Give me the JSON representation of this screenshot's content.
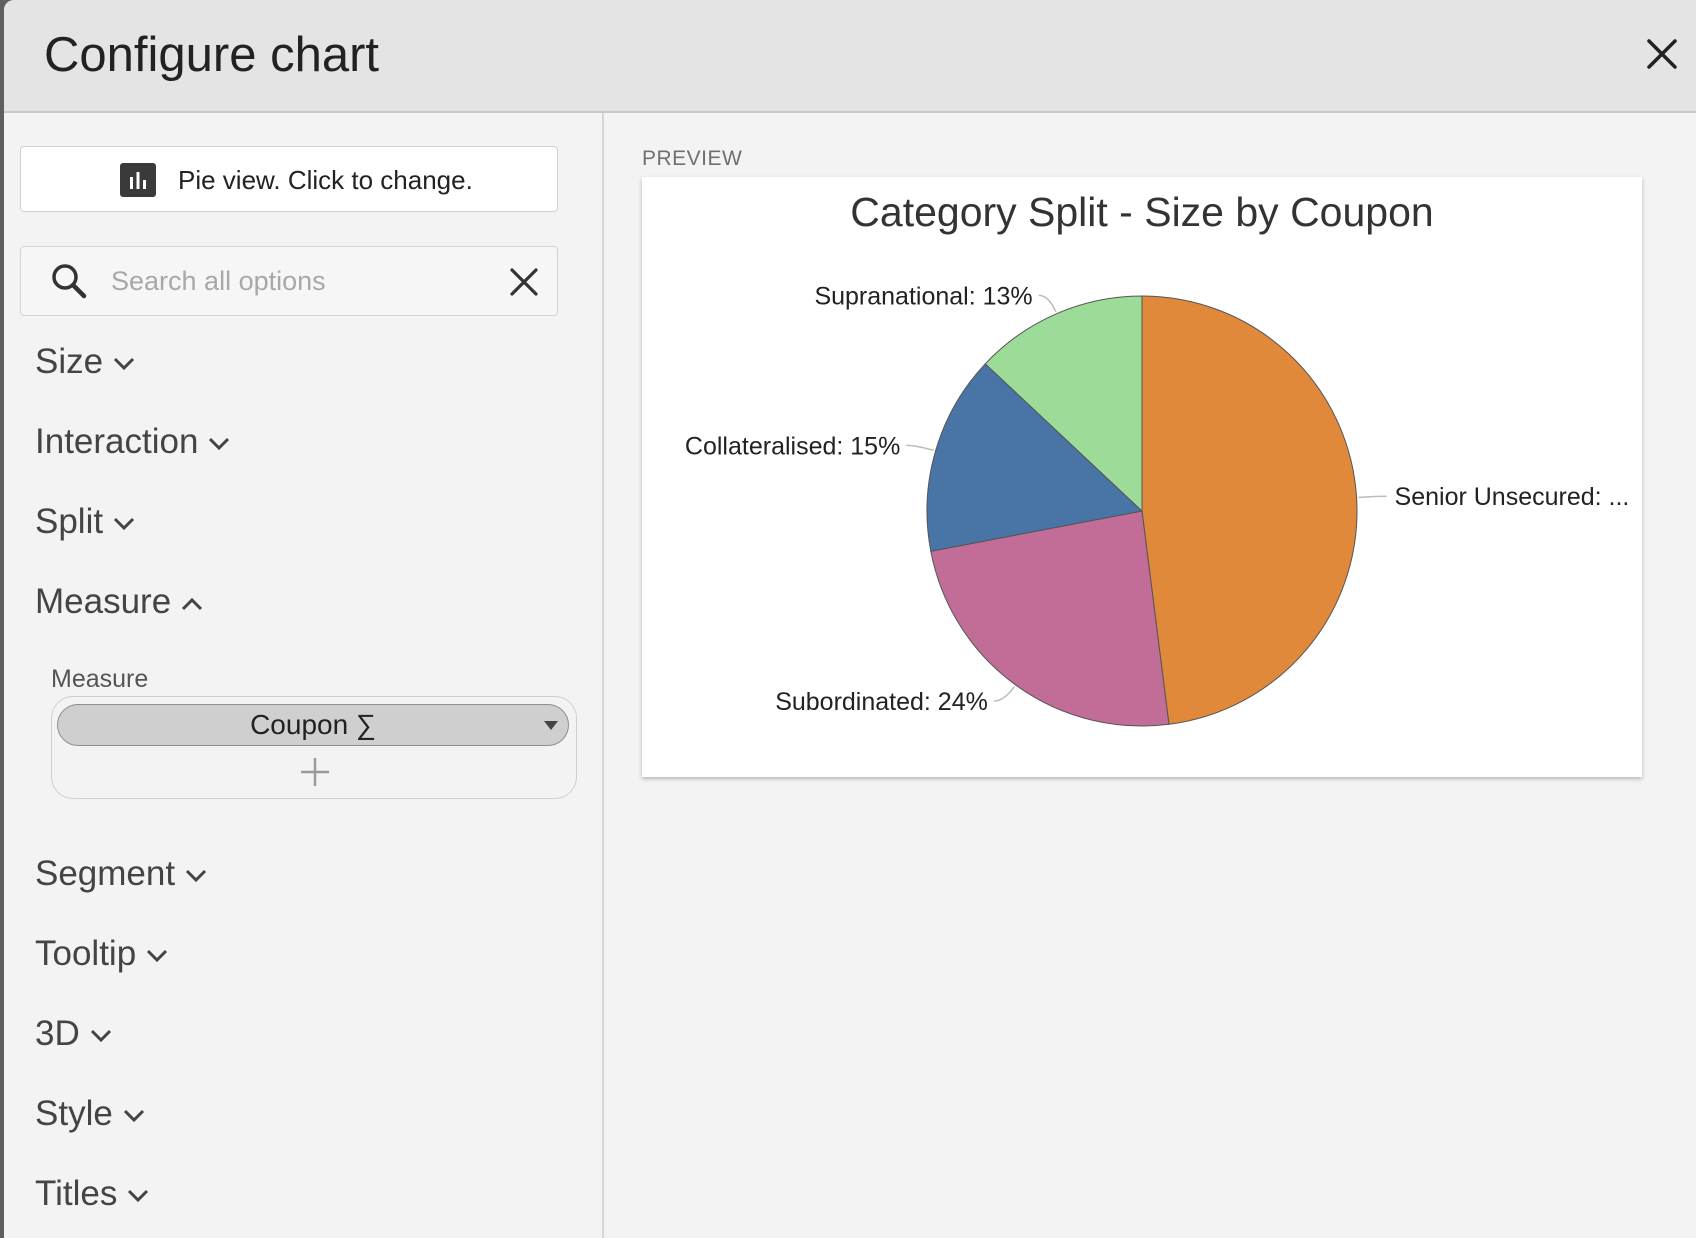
{
  "dialog": {
    "title": "Configure chart",
    "close_icon": "close-icon"
  },
  "sidebar": {
    "chart_type_button": "Pie view. Click to change.",
    "chart_type_icon": "bar-chart-icon",
    "search": {
      "placeholder": "Search all options",
      "value": ""
    },
    "sections": [
      {
        "label": "Size",
        "expanded": false
      },
      {
        "label": "Interaction",
        "expanded": false
      },
      {
        "label": "Split",
        "expanded": false
      },
      {
        "label": "Measure",
        "expanded": true
      },
      {
        "label": "Segment",
        "expanded": false
      },
      {
        "label": "Tooltip",
        "expanded": false
      },
      {
        "label": "3D",
        "expanded": false
      },
      {
        "label": "Style",
        "expanded": false
      },
      {
        "label": "Titles",
        "expanded": false
      }
    ],
    "measure": {
      "field_label": "Measure",
      "pill_label": "Coupon ∑"
    }
  },
  "preview": {
    "label": "PREVIEW"
  },
  "chart_data": {
    "type": "pie",
    "title": "Category Split - Size by Coupon",
    "slices": [
      {
        "label": "Senior Unsecured: ...",
        "value": 48,
        "color": "#e0893a"
      },
      {
        "label": "Subordinated: 24%",
        "value": 24,
        "color": "#c16d97"
      },
      {
        "label": "Collateralised: 15%",
        "value": 15,
        "color": "#4874a6"
      },
      {
        "label": "Supranational: 13%",
        "value": 13,
        "color": "#9cdb98"
      }
    ],
    "legend": "none",
    "data_labels": "outside"
  }
}
